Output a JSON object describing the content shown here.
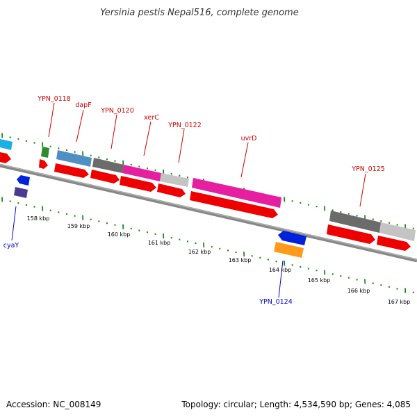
{
  "title": "Yersinia pestis Nepal516, complete genome",
  "footer": {
    "accession": "Accession: NC_008149",
    "summary": "Topology: circular; Length: 4,534,590 bp; Genes: 4,085"
  },
  "colors": {
    "forward_cds": "#ee0000",
    "backbone": "#777777",
    "tick": "#1a8a1a",
    "label_red": "#cc0000",
    "label_blue": "#0000cc"
  },
  "scale_labels": [
    "158 kbp",
    "159 kbp",
    "160 kbp",
    "161 kbp",
    "162 kbp",
    "163 kbp",
    "164 kbp",
    "165 kbp",
    "166 kbp",
    "167 kbp"
  ],
  "gene_labels": [
    {
      "id": "YPN_0118",
      "text": "YPN_0118",
      "strand": "forward"
    },
    {
      "id": "dapF",
      "text": "dapF",
      "strand": "forward"
    },
    {
      "id": "YPN_0120",
      "text": "YPN_0120",
      "strand": "forward"
    },
    {
      "id": "xerC",
      "text": "xerC",
      "strand": "forward"
    },
    {
      "id": "YPN_0122",
      "text": "YPN_0122",
      "strand": "forward"
    },
    {
      "id": "uvrD",
      "text": "uvrD",
      "strand": "forward"
    },
    {
      "id": "YPN_0125",
      "text": "YPN_0125",
      "strand": "forward"
    },
    {
      "id": "cyaY",
      "text": "cyaY",
      "strand": "reverse"
    },
    {
      "id": "YPN_0124",
      "text": "YPN_0124",
      "strand": "reverse"
    }
  ]
}
